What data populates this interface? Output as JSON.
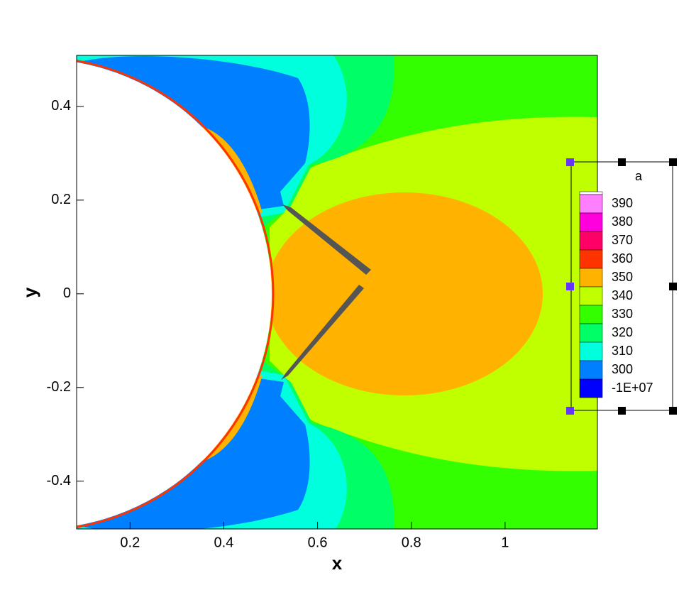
{
  "chart_data": {
    "type": "contour",
    "xlabel": "x",
    "ylabel": "y",
    "xlim": [
      0.086,
      1.197
    ],
    "ylim": [
      -0.502,
      0.509
    ],
    "xticks": [
      0.2,
      0.4,
      0.6,
      0.8,
      1
    ],
    "yticks": [
      -0.4,
      -0.2,
      0,
      0.2,
      0.4
    ],
    "legend": {
      "title": "a",
      "position": "right",
      "levels": [
        390,
        380,
        370,
        360,
        350,
        340,
        330,
        320,
        310,
        300,
        {
          "value": -10000000,
          "label": "-1E+07"
        }
      ],
      "colors": [
        "#ff80ff",
        "#ff00dd",
        "#ff0066",
        "#ff3300",
        "#ffb300",
        "#c0ff00",
        "#33ff00",
        "#00ff66",
        "#00ffdd",
        "#0080ff",
        "#0000ff"
      ]
    }
  }
}
